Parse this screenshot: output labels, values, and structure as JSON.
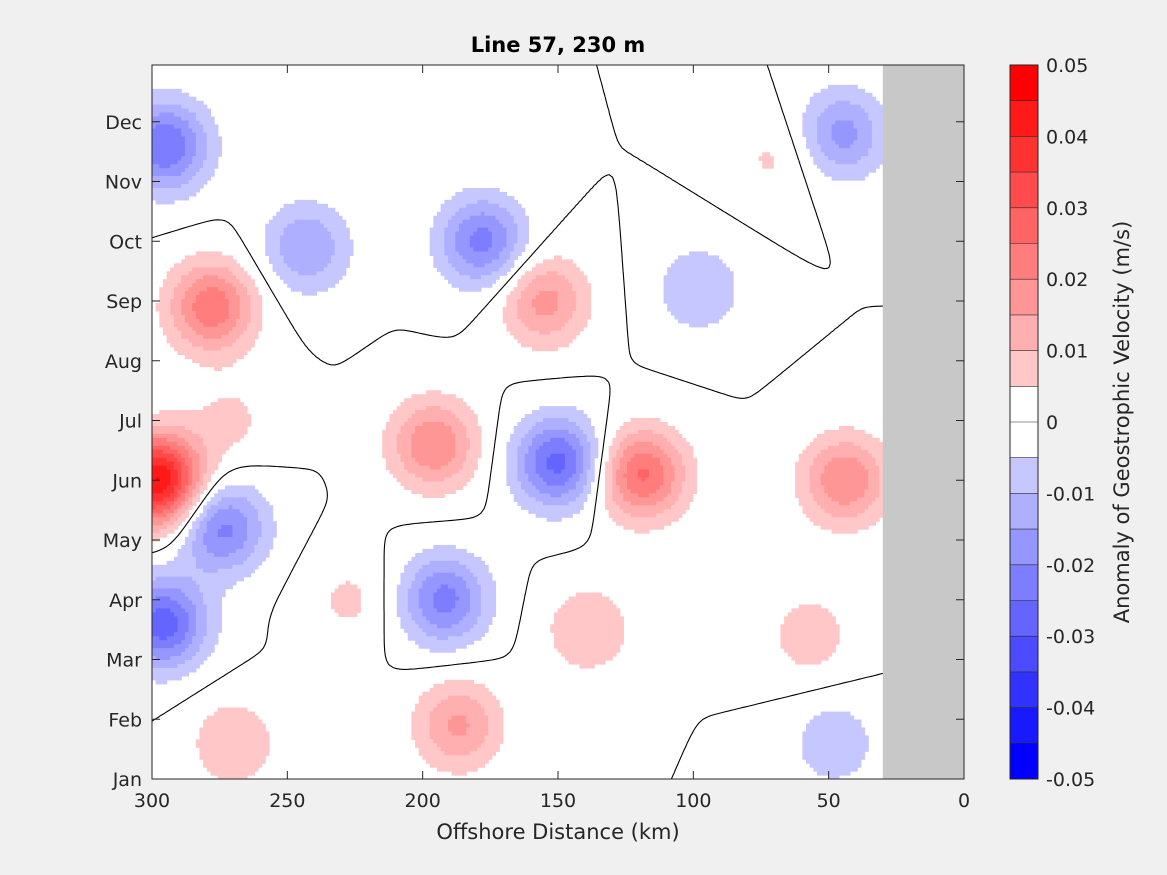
{
  "chart_data": {
    "type": "heatmap",
    "title": "Line 57, 230 m",
    "xlabel": "Offshore Distance (km)",
    "ylabel": "",
    "x_ticks": [
      300,
      250,
      200,
      150,
      100,
      50,
      0
    ],
    "xlim": [
      300,
      0
    ],
    "y_ticks": [
      "Jan",
      "Feb",
      "Mar",
      "Apr",
      "May",
      "Jun",
      "Jul",
      "Aug",
      "Sep",
      "Oct",
      "Nov",
      "Dec"
    ],
    "y_tick_months": [
      1,
      2,
      3,
      4,
      5,
      6,
      7,
      8,
      9,
      10,
      11,
      12
    ],
    "ylim_months": [
      1,
      12.95
    ],
    "no_data_region_km": [
      30,
      0
    ],
    "no_data_color": "#c8c8c8",
    "colorbar": {
      "label": "Anomaly of Geostrophic Velocity (m/s)",
      "range": [
        -0.05,
        0.05
      ],
      "tick_values": [
        0.05,
        0.04,
        0.03,
        0.02,
        0.01,
        0,
        -0.01,
        -0.02,
        -0.03,
        -0.04,
        -0.05
      ],
      "tick_labels": [
        "0.05",
        "0.04",
        "0.03",
        "0.02",
        "0.01",
        "0",
        "-0.01",
        "-0.02",
        "-0.03",
        "-0.04",
        "-0.05"
      ],
      "levels": [
        0.05,
        0.045,
        0.04,
        0.035,
        0.03,
        0.025,
        0.02,
        0.015,
        0.01,
        0.005,
        0,
        -0.005,
        -0.01,
        -0.015,
        -0.02,
        -0.025,
        -0.03,
        -0.035,
        -0.04,
        -0.045,
        -0.05
      ],
      "positive_color": "#ff0000",
      "negative_color": "#0000ff",
      "zero_color": "#ffffff"
    },
    "anomaly_features": [
      {
        "km": 298,
        "month": 6.0,
        "value": 0.046
      },
      {
        "km": 278,
        "month": 8.9,
        "value": 0.024
      },
      {
        "km": 295,
        "month": 11.6,
        "value": -0.025
      },
      {
        "km": 296,
        "month": 3.6,
        "value": -0.028
      },
      {
        "km": 274,
        "month": 5.2,
        "value": -0.022
      },
      {
        "km": 178,
        "month": 10.0,
        "value": -0.022
      },
      {
        "km": 243,
        "month": 9.9,
        "value": -0.015
      },
      {
        "km": 196,
        "month": 6.6,
        "value": 0.02
      },
      {
        "km": 150,
        "month": 6.3,
        "value": -0.027
      },
      {
        "km": 119,
        "month": 6.1,
        "value": 0.026
      },
      {
        "km": 192,
        "month": 4.0,
        "value": -0.022
      },
      {
        "km": 155,
        "month": 9.0,
        "value": 0.017
      },
      {
        "km": 44,
        "month": 6.0,
        "value": 0.02
      },
      {
        "km": 45,
        "month": 11.8,
        "value": -0.017
      },
      {
        "km": 187,
        "month": 1.9,
        "value": 0.016
      },
      {
        "km": 139,
        "month": 3.5,
        "value": 0.01
      },
      {
        "km": 98,
        "month": 9.2,
        "value": -0.01
      },
      {
        "km": 57,
        "month": 3.4,
        "value": 0.008
      },
      {
        "km": 270,
        "month": 1.6,
        "value": 0.01
      },
      {
        "km": 271,
        "month": 7.0,
        "value": 0.006
      },
      {
        "km": 70,
        "month": 11.4,
        "value": 0.006
      },
      {
        "km": 48,
        "month": 1.6,
        "value": -0.009
      },
      {
        "km": 227,
        "month": 4.0,
        "value": 0.006
      }
    ]
  }
}
